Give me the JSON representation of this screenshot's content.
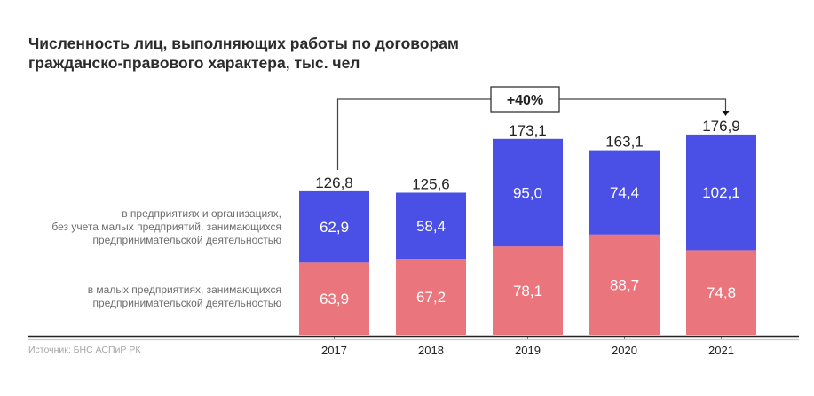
{
  "title_lines": [
    "Численность лиц, выполняющих работы по договорам",
    "гражданско-правового характера, тыс. чел"
  ],
  "source": "Источник: БНС АСПиР РК",
  "colors": {
    "organizations": "#4A4FE6",
    "small_business": "#EB757D",
    "axis": "#222222",
    "axis_secondary": "#c8c8c8",
    "bracket": "#444444",
    "text": "#2b2b2b"
  },
  "chart_data": {
    "type": "bar",
    "stacked": true,
    "title": "Численность лиц, выполняющих работы по договорам гражданско-правового характера, тыс. чел",
    "categories": [
      "2017",
      "2018",
      "2019",
      "2020",
      "2021"
    ],
    "series": [
      {
        "name": "в малых предприятиях, занимающихся предпринимательской деятельностью",
        "legend_lines": [
          "в малых предприятиях, занимающихся",
          "предпринимательской деятельностью"
        ],
        "values": [
          63.9,
          67.2,
          78.1,
          88.7,
          74.8
        ],
        "labels": [
          "63,9",
          "67,2",
          "78,1",
          "88,7",
          "74,8"
        ],
        "color": "#EB757D"
      },
      {
        "name": "в предприятиях и организациях, без учета малых предприятий, занимающихся предпринимательской деятельностью",
        "legend_lines": [
          "в предприятиях и организациях,",
          "без учета малых предприятий, занимающихся",
          "предпринимательской деятельностью"
        ],
        "values": [
          62.9,
          58.4,
          95.0,
          74.4,
          102.1
        ],
        "labels": [
          "62,9",
          "58,4",
          "95,0",
          "74,4",
          "102,1"
        ],
        "color": "#4A4FE6"
      }
    ],
    "totals": [
      126.8,
      125.6,
      173.1,
      163.1,
      176.9
    ],
    "total_labels": [
      "126,8",
      "125,6",
      "173,1",
      "163,1",
      "176,9"
    ],
    "annotation": {
      "text": "+40%",
      "from_category": "2017",
      "to_category": "2021"
    },
    "xlabel": "",
    "ylabel": "",
    "ylim": [
      0,
      176.9
    ],
    "grid": false,
    "legend_placement": "left"
  }
}
